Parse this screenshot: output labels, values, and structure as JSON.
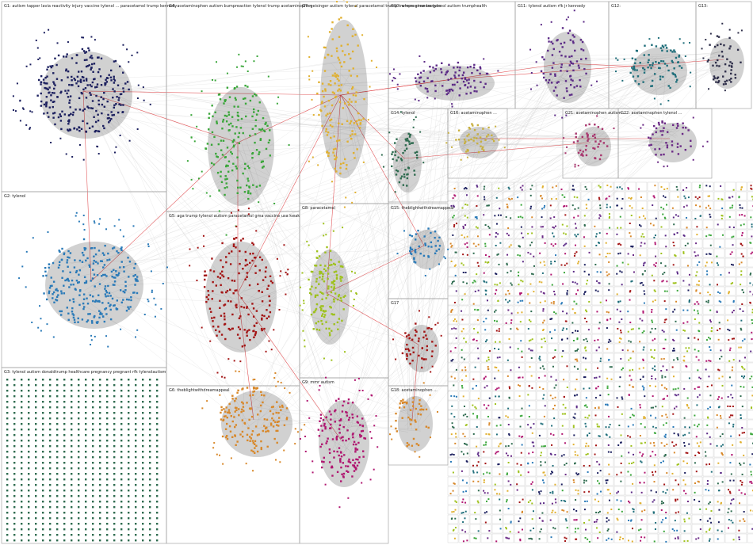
{
  "groups": [
    {
      "id": "g1",
      "label": "G1: autism tapper lavia reactivity injury vaccine tylenol ... paracetamol trump kennedy",
      "color": "#1b1f5e"
    },
    {
      "id": "g2",
      "label": "G2: tylenol",
      "color": "#2a7ab8"
    },
    {
      "id": "g3",
      "label": "G3: tylenol autism donaldtrump healthcare pregnancy pregnant rfk tylenolautism",
      "color": "#2e6b4f"
    },
    {
      "id": "g4",
      "label": "G4: acetaminophen autism bumpreaction tylenol trump acetaminophen",
      "color": "#3aa63a"
    },
    {
      "id": "g5",
      "label": "G5: aga trump tylenol autism paracetamol gma vaccine usa kwak",
      "color": "#a31414"
    },
    {
      "id": "g6",
      "label": "G6: theblightwithdreamappeal",
      "color": "#d8882a"
    },
    {
      "id": "g7",
      "label": "G7: geisinger autism tylenol paracetamol trump trumpregime lawyers",
      "color": "#e0b030"
    },
    {
      "id": "g8",
      "label": "G8: paracetamol",
      "color": "#9ec11c"
    },
    {
      "id": "g9",
      "label": "G9: mmr autism",
      "color": "#b01670"
    },
    {
      "id": "g10",
      "label": "G10: where answers tylenol autism trumphealth",
      "color": "#5b2a86"
    },
    {
      "id": "g11",
      "label": "G11: tylenol autism rfk jr kennedy",
      "color": "#5b2a86"
    },
    {
      "id": "g12",
      "label": "G12:",
      "color": "#1f6e7a"
    },
    {
      "id": "g13",
      "label": "G13:",
      "color": "#2f2f4a"
    },
    {
      "id": "g14",
      "label": "G14: tylenol",
      "color": "#2e6b4f"
    },
    {
      "id": "g15",
      "label": "G15: theblightwithdreamappeal",
      "color": "#2a7ab8"
    },
    {
      "id": "g16",
      "label": "G16: acetaminophen ...",
      "color": "#c8b040"
    },
    {
      "id": "g17",
      "label": "G17",
      "color": "#a31414"
    },
    {
      "id": "g18",
      "label": "G18: acetaminophen ...",
      "color": "#d8882a"
    },
    {
      "id": "g21",
      "label": "G21: acetaminophen autism ...",
      "color": "#a8356d"
    },
    {
      "id": "g22",
      "label": "G22: acetaminophen tylenol ...",
      "color": "#6b2a86"
    }
  ],
  "links": [
    {
      "source": "g1",
      "target": "g7"
    },
    {
      "source": "g1",
      "target": "g4"
    },
    {
      "source": "g1",
      "target": "g2"
    },
    {
      "source": "g4",
      "target": "g7"
    },
    {
      "source": "g4",
      "target": "g5"
    },
    {
      "source": "g7",
      "target": "g5"
    },
    {
      "source": "g7",
      "target": "g10"
    },
    {
      "source": "g7",
      "target": "g11"
    },
    {
      "source": "g7",
      "target": "g8"
    },
    {
      "source": "g7",
      "target": "g15"
    },
    {
      "source": "g7",
      "target": "g14"
    },
    {
      "source": "g5",
      "target": "g9"
    },
    {
      "source": "g5",
      "target": "g6"
    },
    {
      "source": "g2",
      "target": "g3"
    },
    {
      "source": "g2",
      "target": "g4"
    },
    {
      "source": "g8",
      "target": "g15"
    },
    {
      "source": "g8",
      "target": "g17"
    },
    {
      "source": "g11",
      "target": "g12"
    },
    {
      "source": "g10",
      "target": "g13"
    },
    {
      "source": "g14",
      "target": "g21"
    },
    {
      "source": "g16",
      "target": "g22"
    },
    {
      "source": "g18",
      "target": "g17"
    }
  ]
}
